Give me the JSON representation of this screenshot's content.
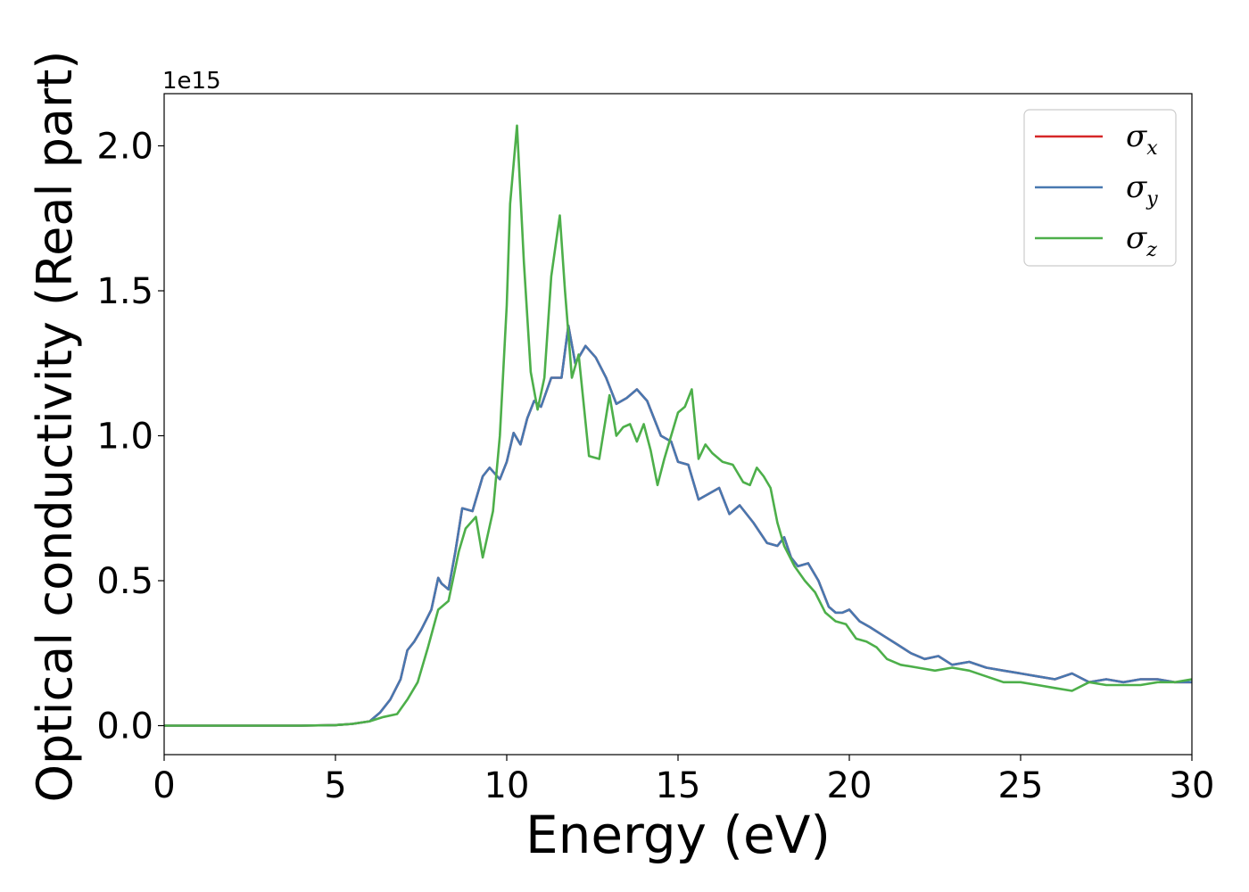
{
  "chart_data": {
    "type": "line",
    "xlabel": "Energy (eV)",
    "ylabel": "Optical conductivity (Real part)",
    "y_offset_label": "1e15",
    "y_multiplier": 1000000000000000.0,
    "xlim": [
      0,
      30
    ],
    "ylim": [
      -0.1,
      2.18
    ],
    "x_ticks": [
      0,
      5,
      10,
      15,
      20,
      25,
      30
    ],
    "y_ticks": [
      0.0,
      0.5,
      1.0,
      1.5,
      2.0
    ],
    "y_tick_labels": [
      "0.0",
      "0.5",
      "1.0",
      "1.5",
      "2.0"
    ],
    "grid": false,
    "legend_position": "top-right",
    "series": [
      {
        "name": "σx",
        "symbol": "σ",
        "subscript": "x",
        "color": "#d62728",
        "x": [
          0,
          2,
          4,
          5,
          5.5,
          6,
          6.3,
          6.6,
          6.9,
          7.1,
          7.3,
          7.5,
          7.8,
          8.0,
          8.1,
          8.3,
          8.5,
          8.7,
          9.0,
          9.3,
          9.5,
          9.8,
          10.0,
          10.2,
          10.4,
          10.6,
          10.8,
          11.0,
          11.3,
          11.6,
          11.8,
          12.0,
          12.3,
          12.6,
          12.9,
          13.2,
          13.5,
          13.8,
          14.1,
          14.5,
          14.8,
          15.0,
          15.3,
          15.6,
          15.9,
          16.2,
          16.5,
          16.8,
          17.2,
          17.6,
          17.9,
          18.1,
          18.3,
          18.5,
          18.8,
          19.1,
          19.4,
          19.6,
          19.8,
          20.0,
          20.3,
          20.6,
          21.0,
          21.4,
          21.8,
          22.2,
          22.6,
          23.0,
          23.5,
          24.0,
          24.5,
          25.0,
          25.5,
          26.0,
          26.5,
          27.0,
          27.5,
          28.0,
          28.5,
          29.0,
          29.5,
          30.0
        ],
        "y": [
          0.0,
          0.0,
          0.0,
          0.002,
          0.006,
          0.015,
          0.045,
          0.09,
          0.16,
          0.26,
          0.29,
          0.33,
          0.4,
          0.51,
          0.49,
          0.47,
          0.6,
          0.75,
          0.74,
          0.86,
          0.89,
          0.85,
          0.91,
          1.01,
          0.97,
          1.06,
          1.12,
          1.1,
          1.2,
          1.2,
          1.38,
          1.25,
          1.31,
          1.27,
          1.2,
          1.11,
          1.13,
          1.16,
          1.12,
          1.0,
          0.98,
          0.91,
          0.9,
          0.78,
          0.8,
          0.82,
          0.73,
          0.76,
          0.7,
          0.63,
          0.62,
          0.65,
          0.58,
          0.55,
          0.56,
          0.5,
          0.41,
          0.39,
          0.39,
          0.4,
          0.36,
          0.34,
          0.31,
          0.28,
          0.25,
          0.23,
          0.24,
          0.21,
          0.22,
          0.2,
          0.19,
          0.18,
          0.17,
          0.16,
          0.18,
          0.15,
          0.16,
          0.15,
          0.16,
          0.16,
          0.15,
          0.15
        ]
      },
      {
        "name": "σy",
        "symbol": "σ",
        "subscript": "y",
        "color": "#4878b0",
        "x": [
          0,
          2,
          4,
          5,
          5.5,
          6,
          6.3,
          6.6,
          6.9,
          7.1,
          7.3,
          7.5,
          7.8,
          8.0,
          8.1,
          8.3,
          8.5,
          8.7,
          9.0,
          9.3,
          9.5,
          9.8,
          10.0,
          10.2,
          10.4,
          10.6,
          10.8,
          11.0,
          11.3,
          11.6,
          11.8,
          12.0,
          12.3,
          12.6,
          12.9,
          13.2,
          13.5,
          13.8,
          14.1,
          14.5,
          14.8,
          15.0,
          15.3,
          15.6,
          15.9,
          16.2,
          16.5,
          16.8,
          17.2,
          17.6,
          17.9,
          18.1,
          18.3,
          18.5,
          18.8,
          19.1,
          19.4,
          19.6,
          19.8,
          20.0,
          20.3,
          20.6,
          21.0,
          21.4,
          21.8,
          22.2,
          22.6,
          23.0,
          23.5,
          24.0,
          24.5,
          25.0,
          25.5,
          26.0,
          26.5,
          27.0,
          27.5,
          28.0,
          28.5,
          29.0,
          29.5,
          30.0
        ],
        "y": [
          0.0,
          0.0,
          0.0,
          0.002,
          0.006,
          0.015,
          0.045,
          0.09,
          0.16,
          0.26,
          0.29,
          0.33,
          0.4,
          0.51,
          0.49,
          0.47,
          0.6,
          0.75,
          0.74,
          0.86,
          0.89,
          0.85,
          0.91,
          1.01,
          0.97,
          1.06,
          1.12,
          1.1,
          1.2,
          1.2,
          1.38,
          1.25,
          1.31,
          1.27,
          1.2,
          1.11,
          1.13,
          1.16,
          1.12,
          1.0,
          0.98,
          0.91,
          0.9,
          0.78,
          0.8,
          0.82,
          0.73,
          0.76,
          0.7,
          0.63,
          0.62,
          0.65,
          0.58,
          0.55,
          0.56,
          0.5,
          0.41,
          0.39,
          0.39,
          0.4,
          0.36,
          0.34,
          0.31,
          0.28,
          0.25,
          0.23,
          0.24,
          0.21,
          0.22,
          0.2,
          0.19,
          0.18,
          0.17,
          0.16,
          0.18,
          0.15,
          0.16,
          0.15,
          0.16,
          0.16,
          0.15,
          0.15
        ]
      },
      {
        "name": "σz",
        "symbol": "σ",
        "subscript": "z",
        "color": "#4daf4a",
        "x": [
          0,
          2,
          4,
          5,
          5.5,
          6,
          6.4,
          6.8,
          7.1,
          7.4,
          7.7,
          8.0,
          8.3,
          8.6,
          8.8,
          9.1,
          9.3,
          9.6,
          9.8,
          10.0,
          10.1,
          10.3,
          10.5,
          10.7,
          10.9,
          11.1,
          11.3,
          11.55,
          11.7,
          11.9,
          12.1,
          12.4,
          12.7,
          13.0,
          13.2,
          13.4,
          13.6,
          13.8,
          14.0,
          14.2,
          14.4,
          14.6,
          14.8,
          15.0,
          15.2,
          15.4,
          15.6,
          15.8,
          16.0,
          16.3,
          16.6,
          16.9,
          17.1,
          17.3,
          17.5,
          17.7,
          17.9,
          18.1,
          18.4,
          18.7,
          19.0,
          19.3,
          19.6,
          19.9,
          20.2,
          20.5,
          20.8,
          21.1,
          21.5,
          22.0,
          22.5,
          23.0,
          23.5,
          24.0,
          24.5,
          25.0,
          25.5,
          26.0,
          26.5,
          27.0,
          27.5,
          28.0,
          28.5,
          29.0,
          29.5,
          30.0
        ],
        "y": [
          0.0,
          0.0,
          0.0,
          0.002,
          0.006,
          0.015,
          0.03,
          0.04,
          0.09,
          0.15,
          0.27,
          0.4,
          0.43,
          0.6,
          0.68,
          0.72,
          0.58,
          0.74,
          1.0,
          1.45,
          1.8,
          2.07,
          1.6,
          1.22,
          1.09,
          1.2,
          1.55,
          1.76,
          1.5,
          1.2,
          1.28,
          0.93,
          0.92,
          1.14,
          1.0,
          1.03,
          1.04,
          0.98,
          1.04,
          0.95,
          0.83,
          0.92,
          1.0,
          1.08,
          1.1,
          1.16,
          0.92,
          0.97,
          0.94,
          0.91,
          0.9,
          0.84,
          0.83,
          0.89,
          0.86,
          0.82,
          0.7,
          0.62,
          0.55,
          0.5,
          0.46,
          0.39,
          0.36,
          0.35,
          0.3,
          0.29,
          0.27,
          0.23,
          0.21,
          0.2,
          0.19,
          0.2,
          0.19,
          0.17,
          0.15,
          0.15,
          0.14,
          0.13,
          0.12,
          0.15,
          0.14,
          0.14,
          0.14,
          0.15,
          0.15,
          0.16
        ]
      }
    ]
  }
}
